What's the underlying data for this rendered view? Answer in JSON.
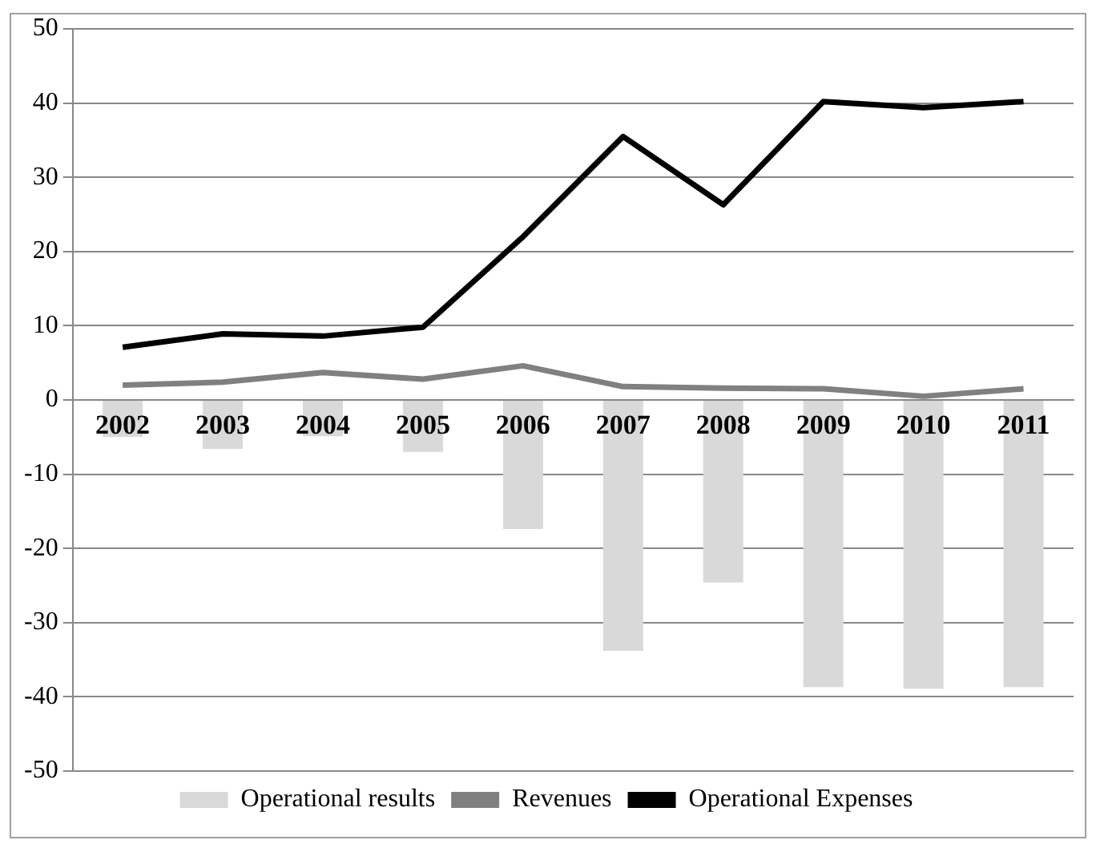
{
  "chart_data": {
    "type": "bar",
    "categories": [
      "2002",
      "2003",
      "2004",
      "2005",
      "2006",
      "2007",
      "2008",
      "2009",
      "2010",
      "2011"
    ],
    "series": [
      {
        "name": "Operational results",
        "color": "#d9d9d9",
        "values": [
          -5,
          -6.6,
          -4.9,
          -7,
          -17.4,
          -33.8,
          -24.6,
          -38.7,
          -38.9,
          -38.7
        ]
      },
      {
        "name": "Revenues",
        "type": "line",
        "color": "#808080",
        "values": [
          2,
          2.4,
          3.7,
          2.8,
          4.6,
          1.8,
          1.6,
          1.5,
          0.5,
          1.5
        ]
      },
      {
        "name": "Operational Expenses",
        "type": "line",
        "color": "#000000",
        "values": [
          7.1,
          8.9,
          8.6,
          9.8,
          22,
          35.5,
          26.3,
          40.2,
          39.4,
          40.2
        ]
      }
    ],
    "ylim": [
      -50,
      50
    ],
    "yticks": [
      -50,
      -40,
      -30,
      -20,
      -10,
      0,
      10,
      20,
      30,
      40,
      50
    ],
    "grid": "y",
    "legend": "bottom",
    "marker": "none"
  }
}
